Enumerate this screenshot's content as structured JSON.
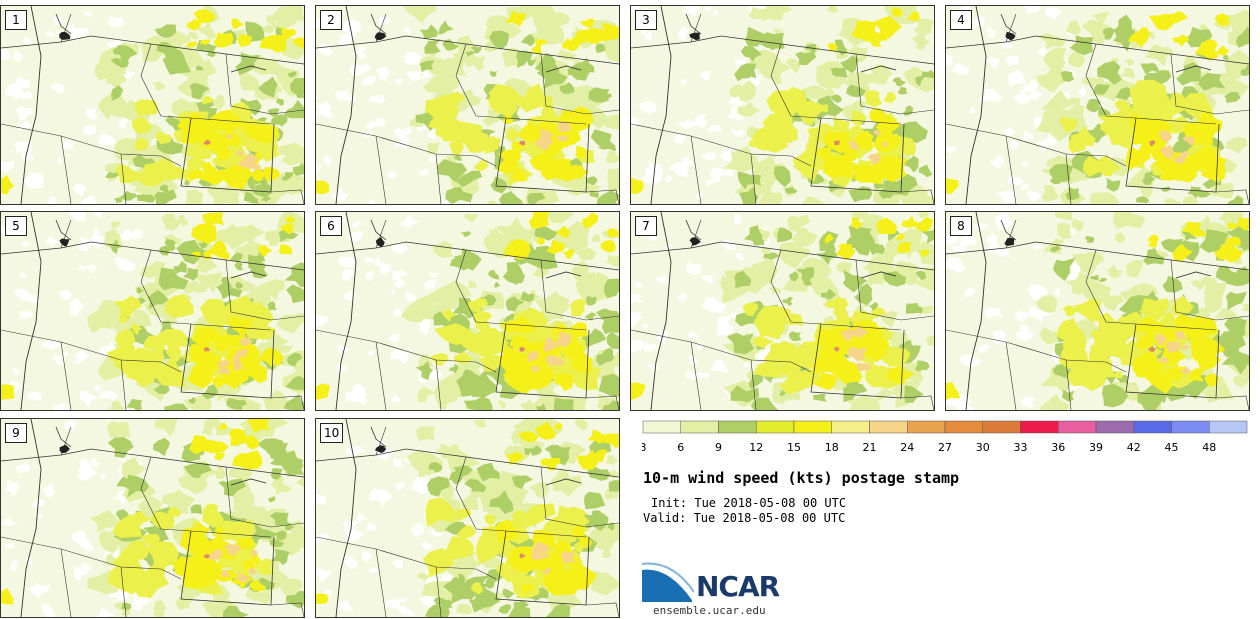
{
  "panels": [
    "1",
    "2",
    "3",
    "4",
    "5",
    "6",
    "7",
    "8",
    "9",
    "10"
  ],
  "colorbar": {
    "ticks": [
      "3",
      "6",
      "9",
      "12",
      "15",
      "18",
      "21",
      "24",
      "27",
      "30",
      "33",
      "36",
      "39",
      "42",
      "45",
      "48"
    ],
    "colors": [
      "#f2f7d6",
      "#e2efa4",
      "#aece66",
      "#e4ec2e",
      "#f5f018",
      "#f6ee86",
      "#f6d48a",
      "#e9a24e",
      "#e58b3c",
      "#dc7a3a",
      "#ee1a4a",
      "#e85ea0",
      "#9a6cae",
      "#5a6ae6",
      "#7c8cf2",
      "#b8c6f6"
    ]
  },
  "title": "10-m wind speed (kts) postage stamp",
  "init": "Init: Tue 2018-05-08 00 UTC",
  "valid": "Valid: Tue 2018-05-08 00 UTC",
  "logo": {
    "name": "NCAR",
    "url": "ensemble.ucar.edu"
  },
  "colors": {
    "light": "#f4f8e0",
    "pale": "#e2efa4",
    "green": "#aece66",
    "yellow": "#f5f018",
    "bright": "#ecf04a",
    "tan": "#f6d48a",
    "orange": "#dc8a6a"
  }
}
